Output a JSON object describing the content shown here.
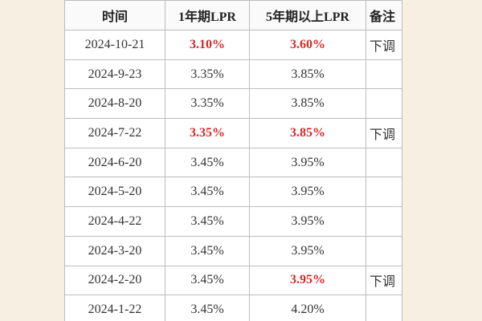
{
  "table": {
    "header": [
      "时间",
      "1年期LPR",
      "5年期以上LPR",
      "备注"
    ],
    "rows": [
      [
        "2024-10-21",
        "3.10%",
        "3.60%",
        "下调"
      ],
      [
        "2024-9-23",
        "3.35%",
        "3.85%",
        null
      ],
      [
        "2024-8-20",
        "3.35%",
        "3.85%",
        null
      ],
      [
        "2024-7-22",
        "3.35%",
        "3.85%",
        "下调"
      ],
      [
        "2024-6-20",
        "3.45%",
        "3.95%",
        null
      ],
      [
        "2024-5-20",
        "3.45%",
        "3.95%",
        null
      ],
      [
        "2024-4-22",
        "3.45%",
        "3.95%",
        null
      ],
      [
        "2024-3-20",
        "3.45%",
        "3.95%",
        null
      ],
      [
        "2024-2-20",
        "3.45%",
        "3.95%",
        "下调"
      ],
      [
        "2024-1-22",
        "3.45%",
        "4.20%",
        null
      ]
    ],
    "highlight_color": "#d62828",
    "highlighted": [
      [
        0,
        1
      ],
      [
        0,
        2
      ],
      [
        3,
        1
      ],
      [
        3,
        2
      ],
      [
        8,
        2
      ]
    ]
  }
}
